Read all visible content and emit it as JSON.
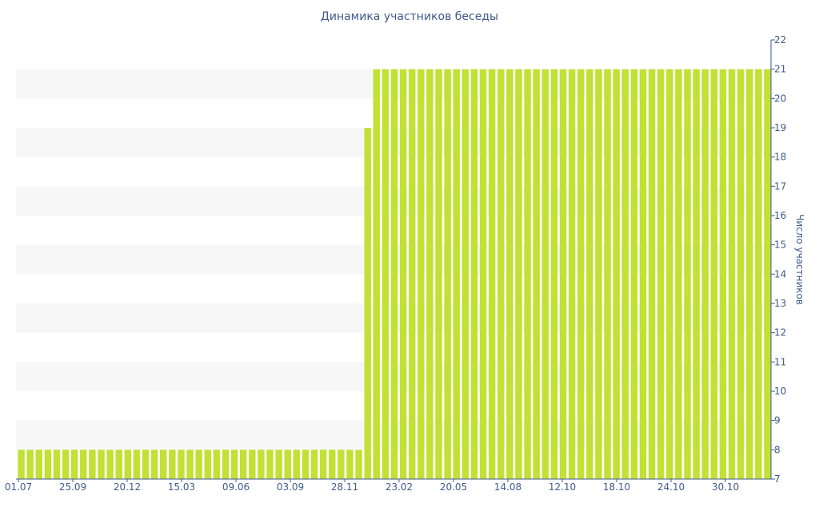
{
  "chart_data": {
    "type": "bar",
    "title": "Динамика участников беседы",
    "xlabel": "",
    "ylabel": "Число участников",
    "ylim": [
      7,
      22
    ],
    "y_ticks": [
      7,
      8,
      9,
      10,
      11,
      12,
      13,
      14,
      15,
      16,
      17,
      18,
      19,
      20,
      21,
      22
    ],
    "x_tick_labels": [
      "01.07",
      "25.09",
      "20.12",
      "15.03",
      "09.06",
      "03.09",
      "28.11",
      "23.02",
      "20.05",
      "14.08",
      "12.10",
      "18.10",
      "24.10",
      "30.10"
    ],
    "y_axis_position": "right",
    "grid": "horizontal bands",
    "series": [
      {
        "values": [
          8,
          8,
          8,
          8,
          8,
          8,
          8,
          8,
          8,
          8,
          8,
          8,
          8,
          8,
          8,
          8,
          8,
          8,
          8,
          8,
          8,
          8,
          8,
          8,
          8,
          8,
          8,
          8,
          8,
          8,
          8,
          8,
          8,
          8,
          8,
          8,
          8,
          8,
          8,
          19,
          21,
          21,
          21,
          21,
          21,
          21,
          21,
          21,
          21,
          21,
          21,
          21,
          21,
          21,
          21,
          21,
          21,
          21,
          21,
          21,
          21,
          21,
          21,
          21,
          21,
          21,
          21,
          21,
          21,
          21,
          21,
          21,
          21,
          21,
          21,
          21,
          21,
          21,
          21,
          21,
          21,
          21,
          21,
          21,
          21
        ]
      }
    ],
    "colors": {
      "bar": "#c3e034",
      "axis": "#3f5a8c",
      "band": "#f7f7f7"
    }
  }
}
